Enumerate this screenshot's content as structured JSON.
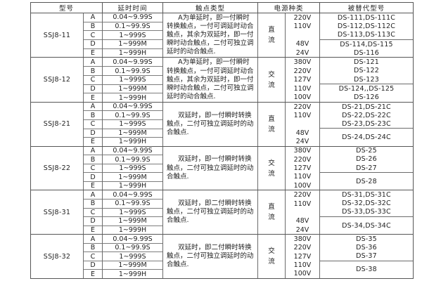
{
  "colors": {
    "background": "#ffffff",
    "text": "#1f1f1f",
    "border": "#565656"
  },
  "table": {
    "headers": {
      "model": "型号",
      "delay": "延时时间",
      "contact": "触点类型",
      "power": "电源种类",
      "replaced": "被替代型号"
    },
    "groups": [
      {
        "model": "SSJ8-11",
        "rows": [
          {
            "label": "A",
            "delay": "0.04~9.99S"
          },
          {
            "label": "B",
            "delay": "0.1~99.9S"
          },
          {
            "label": "C",
            "delay": "1~999S"
          },
          {
            "label": "D",
            "delay": "1~999M"
          },
          {
            "label": "E",
            "delay": "1~999H"
          }
        ],
        "contact": "A为单延时，即一付瞬时转换触点，一付可调延时动合触点，其余为双延时，即一付瞬时动合触点，二付可独立调延时的动合触点.",
        "power_kind": "直流",
        "voltages": [
          "220V",
          "110V",
          "",
          "48V",
          "24V"
        ],
        "replaced_top": [
          "DS-111,DS-111C",
          "DS-112,DS-112C",
          "DS-113,DS-113C"
        ],
        "replaced_bottom": [
          "DS-114,DS-115",
          "DS-116"
        ]
      },
      {
        "model": "SSJ8-12",
        "rows": [
          {
            "label": "A",
            "delay": "0.04~9.99S"
          },
          {
            "label": "B",
            "delay": "0.1~99.9S"
          },
          {
            "label": "C",
            "delay": "1~999S"
          },
          {
            "label": "D",
            "delay": "1~999M"
          },
          {
            "label": "E",
            "delay": "1~999H"
          }
        ],
        "contact": "A为单延时，即一付瞬时转换触点，一付可调延时动合触点，其余为双延时，即一付瞬时动合触点，二付可独立调延时的动合触点.",
        "power_kind": "交流",
        "voltages": [
          "380V",
          "220V",
          "127V",
          "110V",
          "100V"
        ],
        "replaced_top": [
          "DS-121",
          "DS-122",
          "DS-123"
        ],
        "replaced_bottom": [
          "DS-124,,DS-125",
          "DS-126"
        ]
      },
      {
        "model": "SSJ8-21",
        "rows": [
          {
            "label": "A",
            "delay": "0.04~9.99S"
          },
          {
            "label": "B",
            "delay": "0.1~99.9S"
          },
          {
            "label": "C",
            "delay": "1~999S"
          },
          {
            "label": "D",
            "delay": "1~999M"
          },
          {
            "label": "E",
            "delay": "1~999H"
          }
        ],
        "contact": "双延时，即一付瞬时转换触点，二付可独立调延时的动合触点.",
        "power_kind": "直流",
        "voltages": [
          "220V",
          "110V",
          "",
          "48V",
          "24V"
        ],
        "replaced_top": [
          "DS-21,DS-21C",
          "DS-22,DS-22C",
          "DS-23,DS-23C"
        ],
        "replaced_bottom": [
          "DS-24,DS-24C"
        ]
      },
      {
        "model": "SSJ8-22",
        "rows": [
          {
            "label": "A",
            "delay": "0.04~9.99S"
          },
          {
            "label": "B",
            "delay": "0.1~99.9S"
          },
          {
            "label": "C",
            "delay": "1~999S"
          },
          {
            "label": "D",
            "delay": "1~999M"
          },
          {
            "label": "E",
            "delay": "1~999H"
          }
        ],
        "contact": "双延时，即一付瞬时转换触点，二付可独立调延时的动合触点.",
        "power_kind": "交流",
        "voltages": [
          "380V",
          "220V",
          "127V",
          "110V",
          "100V"
        ],
        "replaced_top": [
          "DS-25",
          "DS-26",
          "DS-27"
        ],
        "replaced_bottom": [
          "DS-28"
        ]
      },
      {
        "model": "SSJ8-31",
        "rows": [
          {
            "label": "A",
            "delay": "0.04~9.99S"
          },
          {
            "label": "B",
            "delay": "0.1~99.9S"
          },
          {
            "label": "C",
            "delay": "1~999S"
          },
          {
            "label": "D",
            "delay": "1~999M"
          },
          {
            "label": "E",
            "delay": "1~999H"
          }
        ],
        "contact": "双延时，即二付瞬时转换触点，二付可独立调延时的动合触点.",
        "power_kind": "直流",
        "voltages": [
          "220V",
          "110V",
          "",
          "48V",
          "24V"
        ],
        "replaced_top": [
          "DS-31,DS-31C",
          "DS-32,DS-32C",
          "DS-33,DS-33C"
        ],
        "replaced_bottom": [
          "DS-34,DS-34C"
        ]
      },
      {
        "model": "SSJ8-32",
        "rows": [
          {
            "label": "A",
            "delay": "0.04~9.99S"
          },
          {
            "label": "B",
            "delay": "0.1~99.9S"
          },
          {
            "label": "C",
            "delay": "1~999S"
          },
          {
            "label": "D",
            "delay": "1~999M"
          },
          {
            "label": "E",
            "delay": "1~999H"
          }
        ],
        "contact": "双延时，即二付瞬时转换触点，二付可独立调延时的动合触点.",
        "power_kind": "交流",
        "voltages": [
          "380V",
          "220V",
          "127V",
          "110V",
          "100V"
        ],
        "replaced_top": [
          "DS-35",
          "DS-36",
          "DS-37"
        ],
        "replaced_bottom": [
          "DS-38"
        ]
      }
    ]
  }
}
